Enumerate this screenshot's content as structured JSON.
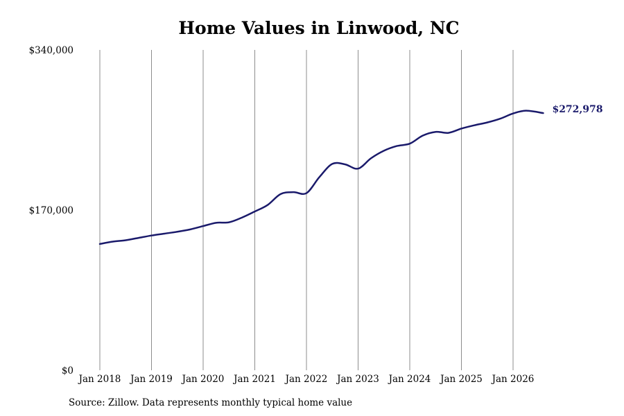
{
  "chart_data": {
    "type": "line",
    "title": "Home Values in Linwood, NC",
    "xlabel": "",
    "ylabel": "",
    "x_tick_labels": [
      "Jan 2018",
      "Jan 2019",
      "Jan 2020",
      "Jan 2021",
      "Jan 2022",
      "Jan 2023",
      "Jan 2024",
      "Jan 2025",
      "Jan 2026"
    ],
    "y_tick_labels": [
      "$0",
      "$170,000",
      "$340,000"
    ],
    "ylim": [
      0,
      340000
    ],
    "xlim": [
      "2018-01",
      "2026-08"
    ],
    "grid": "vertical",
    "line_color": "#1a1a6b",
    "end_label": "$272,978",
    "series": [
      {
        "x": [
          "2018-01",
          "2018-04",
          "2018-07",
          "2018-10",
          "2019-01",
          "2019-04",
          "2019-07",
          "2019-10",
          "2020-01",
          "2020-04",
          "2020-07",
          "2020-10",
          "2021-01",
          "2021-04",
          "2021-07",
          "2021-10",
          "2022-01",
          "2022-04",
          "2022-07",
          "2022-10",
          "2023-01",
          "2023-04",
          "2023-07",
          "2023-10",
          "2024-01",
          "2024-04",
          "2024-07",
          "2024-10",
          "2025-01",
          "2025-04",
          "2025-07",
          "2025-10",
          "2026-01",
          "2026-04",
          "2026-08"
        ],
        "values": [
          134000,
          136500,
          138000,
          140500,
          143000,
          145000,
          147000,
          149500,
          153000,
          156500,
          157000,
          162000,
          168500,
          175500,
          187000,
          189000,
          188000,
          205000,
          219000,
          218500,
          214000,
          225000,
          233000,
          238000,
          240500,
          249000,
          253000,
          252000,
          256500,
          260000,
          263000,
          267000,
          272500,
          275500,
          272978
        ]
      }
    ]
  },
  "source_note": "Source: Zillow. Data represents monthly typical home value"
}
